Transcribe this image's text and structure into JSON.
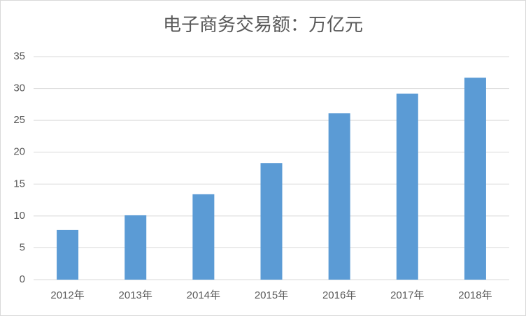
{
  "chart_data": {
    "type": "bar",
    "title": "电子商务交易额：万亿元",
    "categories": [
      "2012年",
      "2013年",
      "2014年",
      "2015年",
      "2016年",
      "2017年",
      "2018年"
    ],
    "values": [
      7.8,
      10.1,
      13.4,
      18.3,
      26.1,
      29.2,
      31.7
    ],
    "color": "#5b9bd5",
    "ylim": [
      0,
      35
    ],
    "yticks": [
      0,
      5,
      10,
      15,
      20,
      25,
      30,
      35
    ],
    "grid": true
  }
}
